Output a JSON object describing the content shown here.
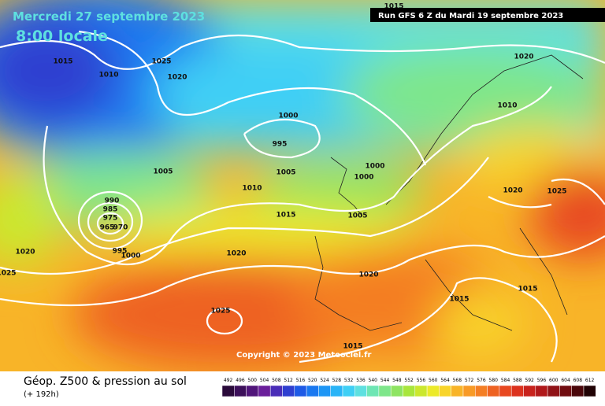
{
  "header": {
    "date": "Mercredi 27 septembre 2023",
    "time": "8:00 locale",
    "run": "Run GFS 6 Z du Mardi 19 septembre 2023"
  },
  "isobar_labels": [
    1015,
    1010,
    1025,
    1020,
    1000,
    995,
    1005,
    1005,
    1010,
    1000,
    1000,
    1015,
    1005,
    990,
    985,
    975,
    965,
    970,
    995,
    1000,
    1020,
    1025,
    1020,
    1020,
    1025,
    1015,
    1015,
    1015,
    1020,
    1025,
    1020,
    1010,
    1015
  ],
  "copyright": "Copyright © 2023 Meteociel.fr",
  "footer": {
    "title": "Géop. Z500 & pression au sol",
    "lead": "(+ 192h)"
  },
  "legend": {
    "values": [
      492,
      496,
      500,
      504,
      508,
      512,
      516,
      520,
      524,
      528,
      532,
      536,
      540,
      544,
      548,
      552,
      556,
      560,
      564,
      568,
      572,
      576,
      580,
      584,
      588,
      592,
      596,
      600,
      604,
      608,
      612
    ],
    "colors": [
      "#2a0a3a",
      "#3c0f5a",
      "#50157a",
      "#6a1e9a",
      "#4a2db8",
      "#2f3fd0",
      "#1e5ae6",
      "#1a78f0",
      "#1e96f5",
      "#2ab4f7",
      "#3fcff5",
      "#5ee0e0",
      "#6ee6b4",
      "#7ee68a",
      "#8ee462",
      "#a8e63c",
      "#cbe82e",
      "#ecea2a",
      "#f8d42a",
      "#f8b428",
      "#f89a26",
      "#f47e24",
      "#ee6222",
      "#e84820",
      "#dc321e",
      "#c8221c",
      "#b0181a",
      "#901216",
      "#700c10",
      "#4a060a",
      "#200204"
    ]
  }
}
